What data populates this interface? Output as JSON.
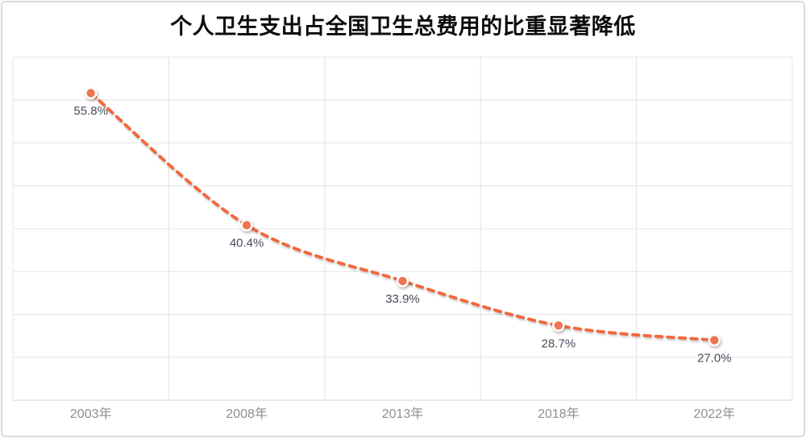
{
  "chart_data": {
    "type": "line",
    "title": "个人卫生支出占全国卫生总费用的比重显著降低",
    "categories": [
      "2003年",
      "2008年",
      "2013年",
      "2018年",
      "2022年"
    ],
    "values": [
      55.8,
      40.4,
      33.9,
      28.7,
      27.0
    ],
    "data_labels": [
      "55.8%",
      "40.4%",
      "33.9%",
      "28.7%",
      "27.0%"
    ],
    "xlabel": "",
    "ylabel": "",
    "ylim": [
      20,
      60
    ],
    "y_step": 5,
    "y_tick_labels_visible": false,
    "grid": "horizontal-and-vertical",
    "legend": "none",
    "line_style": "dashed",
    "smooth": true,
    "data_label_position": "below",
    "colors": {
      "line": "#f4663a",
      "marker_fill": "#ef7550",
      "marker_ring": "#ffffff",
      "grid": "#e4e4e4",
      "axis_line": "#d6d6d6",
      "axis_text": "#8f8f8f",
      "label_text": "#474c5b",
      "title_text": "#0c0c0c",
      "border": "#dadada",
      "background": "#ffffff"
    }
  }
}
